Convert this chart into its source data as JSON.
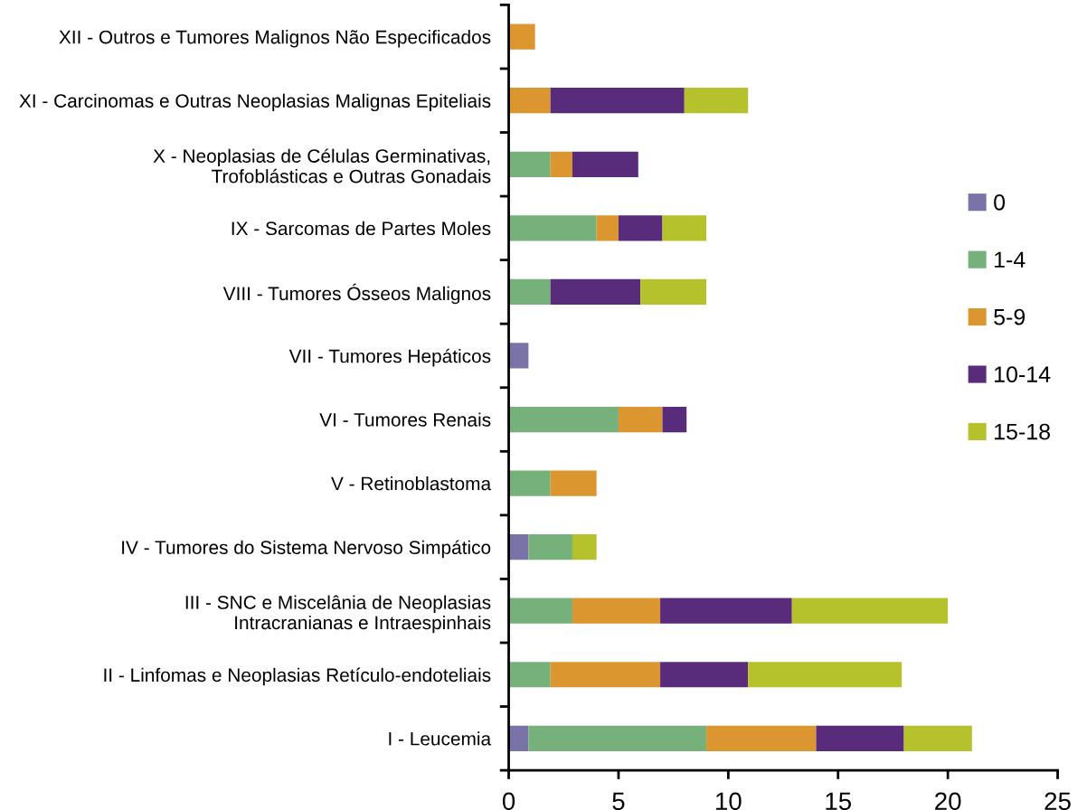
{
  "chart_data": {
    "type": "bar",
    "orientation": "horizontal",
    "stacked": true,
    "categories": [
      "XII - Outros e Tumores Malignos Não Especificados",
      "XI - Carcinomas e Outras Neoplasias Malignas Epiteliais",
      "X - Neoplasias de Células Germinativas,\nTrofoblásticas e Outras Gonadais",
      "IX - Sarcomas de Partes Moles",
      "VIII - Tumores Ósseos Malignos",
      "VII - Tumores Hepáticos",
      "VI - Tumores Renais",
      "V - Retinoblastoma",
      "IV - Tumores do Sistema Nervoso Simpático",
      "III - SNC e Miscelânia de Neoplasias\nIntracranianas e Intraespinhais",
      "II - Linfomas e Neoplasias Retículo-endoteliais",
      "I - Leucemia"
    ],
    "series": [
      {
        "name": "0",
        "color": "#7a73a8",
        "values": [
          null,
          null,
          null,
          null,
          null,
          0.9,
          null,
          null,
          0.9,
          null,
          null,
          0.9
        ]
      },
      {
        "name": "1-4",
        "color": "#76b07a",
        "values": [
          null,
          null,
          1.9,
          4,
          1.9,
          null,
          5,
          1.9,
          2,
          2.9,
          1.9,
          8.1
        ]
      },
      {
        "name": "5-9",
        "color": "#dc962f",
        "values": [
          1.2,
          1.9,
          1,
          1,
          null,
          null,
          2,
          2.1,
          null,
          4,
          5,
          5
        ]
      },
      {
        "name": "10-14",
        "color": "#582c7a",
        "values": [
          null,
          6.1,
          3,
          2,
          4.1,
          null,
          1.1,
          null,
          null,
          6,
          4,
          4
        ]
      },
      {
        "name": "15-18",
        "color": "#b5c22c",
        "values": [
          null,
          2.9,
          null,
          2,
          3,
          null,
          null,
          null,
          1.1,
          7.1,
          7,
          3.1
        ]
      }
    ],
    "xlim": [
      0,
      25
    ],
    "xticks": [
      0,
      5,
      10,
      15,
      20,
      25
    ],
    "grid": false,
    "legend": "right"
  }
}
